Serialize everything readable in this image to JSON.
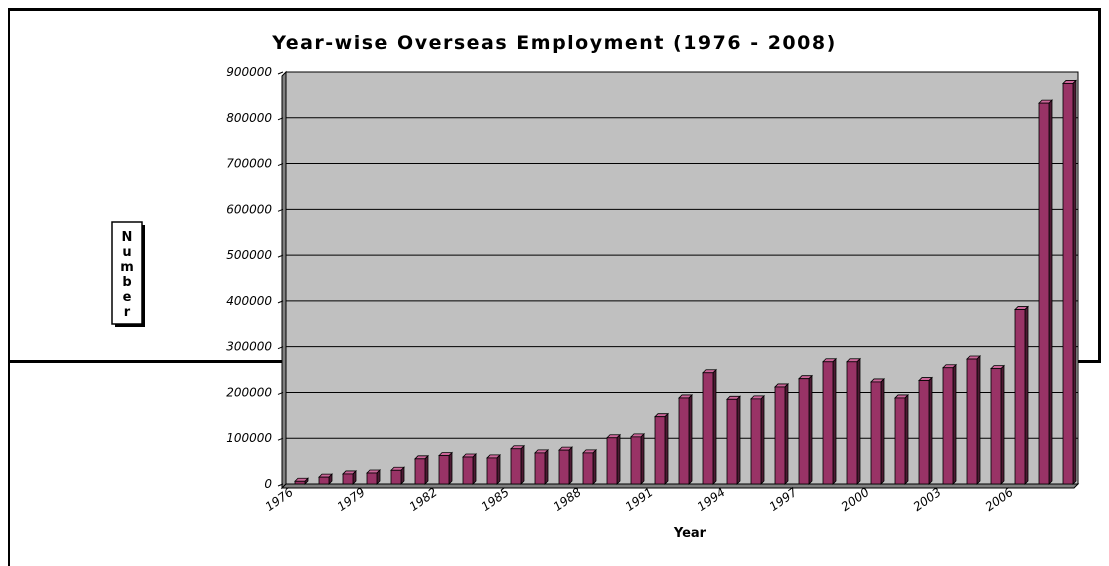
{
  "chart_data": {
    "type": "bar",
    "title": "Year-wise Overseas Employment (1976 - 2008)",
    "xlabel": "Year",
    "ylabel": "Number",
    "ylim": [
      0,
      900000
    ],
    "yticks": [
      "900000",
      "800000",
      "700000",
      "600000",
      "500000",
      "400000",
      "300000",
      "200000",
      "100000",
      "0"
    ],
    "grid": true,
    "legend": "none",
    "colors": {
      "bar": "#993366",
      "plot_bg": "#c0c0c0",
      "grid": "#000000"
    },
    "categories": [
      "1976",
      "1977",
      "1978",
      "1979",
      "1980",
      "1981",
      "1982",
      "1983",
      "1984",
      "1985",
      "1986",
      "1987",
      "1988",
      "1989",
      "1990",
      "1991",
      "1992",
      "1993",
      "1994",
      "1995",
      "1996",
      "1997",
      "1998",
      "1999",
      "2000",
      "2001",
      "2002",
      "2003",
      "2004",
      "2005",
      "2006",
      "2007",
      "2008"
    ],
    "tick_labels": [
      "1976",
      "1979",
      "1982",
      "1985",
      "1988",
      "1991",
      "1994",
      "1997",
      "2000",
      "2003",
      "2006"
    ],
    "values": [
      6000,
      15000,
      22000,
      24000,
      30000,
      55000,
      62000,
      59000,
      57000,
      77000,
      68000,
      74000,
      68000,
      101000,
      103000,
      147000,
      188000,
      243000,
      185000,
      186000,
      212000,
      230000,
      267000,
      267000,
      223000,
      188000,
      226000,
      254000,
      273000,
      252000,
      381000,
      832000,
      875000
    ]
  }
}
